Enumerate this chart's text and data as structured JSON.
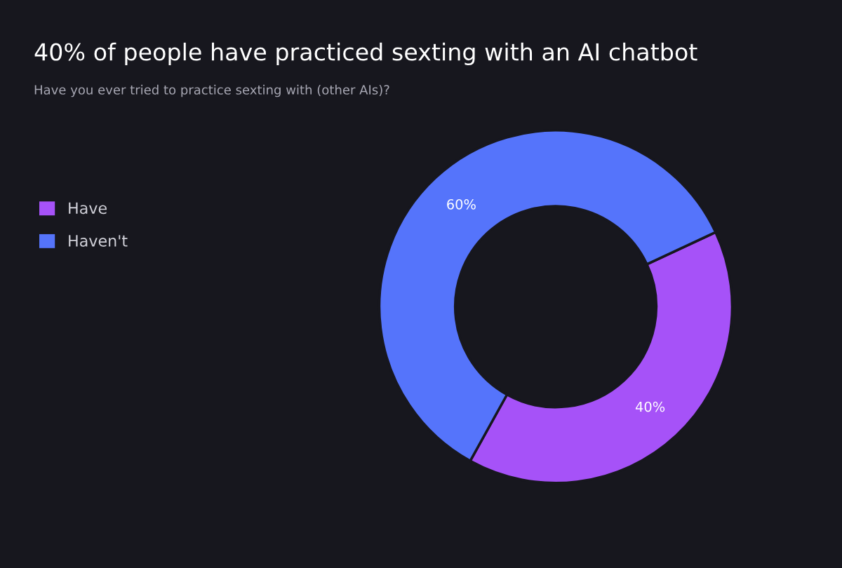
{
  "chart_data": {
    "type": "donut",
    "title": "40% of people have practiced sexting with an AI chatbot",
    "subtitle": "Have you ever tried to practice sexting with (other AIs)?",
    "categories": [
      "Have",
      "Haven't"
    ],
    "values": [
      40,
      60
    ],
    "colors": [
      "#a652f8",
      "#5574fb"
    ],
    "value_labels": [
      "40%",
      "60%"
    ],
    "legend": "left"
  }
}
